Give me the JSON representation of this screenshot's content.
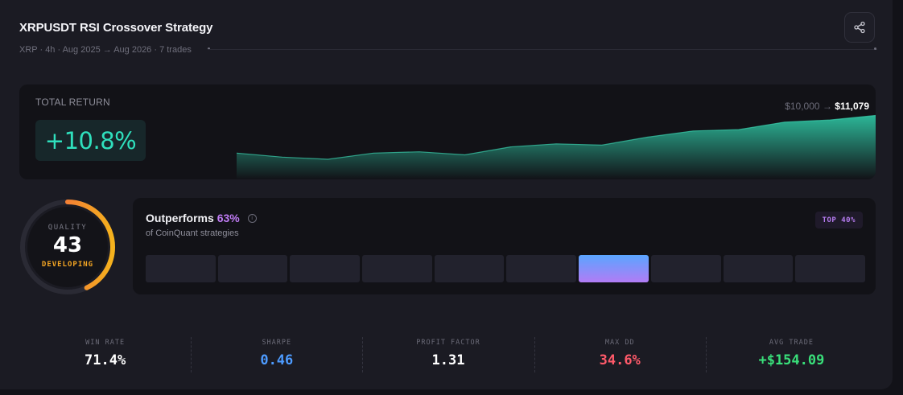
{
  "header": {
    "title": "XRPUSDT RSI Crossover Strategy",
    "subtitle": "XRP · 4h · Aug 2025 → Aug 2026 · 7 trades",
    "share_icon": "share-icon"
  },
  "total_return": {
    "label": "TOTAL RETURN",
    "value": "+10.8%",
    "start_balance": "$10,000",
    "arrow": "→",
    "end_balance": "$11,079",
    "color": "#2fe0bd",
    "equity_curve": [
      0.4,
      0.31,
      0.26,
      0.4,
      0.43,
      0.36,
      0.54,
      0.61,
      0.58,
      0.76,
      0.9,
      0.93,
      1.1,
      1.15,
      1.25
    ]
  },
  "quality": {
    "label": "QUALITY",
    "score": "43",
    "status": "DEVELOPING",
    "score_value": 43
  },
  "outperform": {
    "title": "Outperforms",
    "pct": "63%",
    "info_icon": "i",
    "subtitle": "of CoinQuant strategies",
    "badge": "TOP 40%",
    "buckets": 10,
    "active_bucket": 6
  },
  "stats": [
    {
      "label": "WIN RATE",
      "value": "71.4%",
      "color": "#ffffff"
    },
    {
      "label": "SHARPE",
      "value": "0.46",
      "color": "#4d9bff"
    },
    {
      "label": "PROFIT FACTOR",
      "value": "1.31",
      "color": "#ffffff"
    },
    {
      "label": "MAX DD",
      "value": "34.6%",
      "color": "#ff5a6a"
    },
    {
      "label": "AVG TRADE",
      "value": "+$154.09",
      "color": "#39e07a"
    }
  ]
}
